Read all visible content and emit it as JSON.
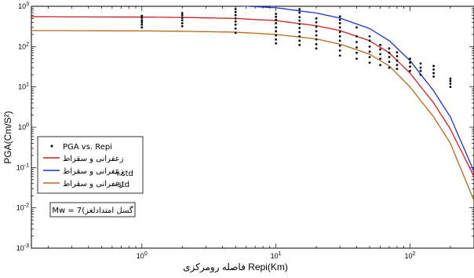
{
  "chart_data": {
    "type": "line",
    "xscale": "log",
    "yscale": "log",
    "xlim": [
      0.15,
      300
    ],
    "ylim": [
      0.001,
      1000
    ],
    "xlabel": "فاصله رومرکزی Repi(Km)",
    "ylabel": "PGA(Cm/S²)",
    "x_ticks": [
      1,
      10,
      100
    ],
    "x_tick_labels": [
      {
        "base": "10",
        "exp": "0"
      },
      {
        "base": "10",
        "exp": "1"
      },
      {
        "base": "10",
        "exp": "2"
      }
    ],
    "y_ticks": [
      0.001,
      0.01,
      0.1,
      1,
      10,
      100,
      1000
    ],
    "y_tick_labels": [
      {
        "base": "10",
        "exp": "-3"
      },
      {
        "base": "10",
        "exp": "-2"
      },
      {
        "base": "10",
        "exp": "-1"
      },
      {
        "base": "10",
        "exp": "0"
      },
      {
        "base": "10",
        "exp": "1"
      },
      {
        "base": "10",
        "exp": "2"
      },
      {
        "base": "10",
        "exp": "3"
      }
    ],
    "series": [
      {
        "name": "PGA vs. Repi",
        "kind": "scatter",
        "color": "#000000",
        "points": [
          [
            1,
            300
          ],
          [
            1,
            350
          ],
          [
            1,
            400
          ],
          [
            1,
            450
          ],
          [
            1,
            520
          ],
          [
            1,
            580
          ],
          [
            2,
            320
          ],
          [
            2,
            380
          ],
          [
            2,
            450
          ],
          [
            2,
            520
          ],
          [
            2,
            600
          ],
          [
            2,
            680
          ],
          [
            5,
            220
          ],
          [
            5,
            280
          ],
          [
            5,
            350
          ],
          [
            5,
            420
          ],
          [
            5,
            500
          ],
          [
            5,
            600
          ],
          [
            5,
            720
          ],
          [
            5,
            850
          ],
          [
            10,
            120
          ],
          [
            10,
            150
          ],
          [
            10,
            190
          ],
          [
            10,
            240
          ],
          [
            10,
            300
          ],
          [
            10,
            380
          ],
          [
            10,
            460
          ],
          [
            10,
            550
          ],
          [
            10,
            650
          ],
          [
            15,
            110
          ],
          [
            15,
            140
          ],
          [
            15,
            180
          ],
          [
            15,
            230
          ],
          [
            15,
            290
          ],
          [
            15,
            360
          ],
          [
            15,
            440
          ],
          [
            15,
            540
          ],
          [
            15,
            700
          ],
          [
            15,
            850
          ],
          [
            20,
            90
          ],
          [
            20,
            115
          ],
          [
            20,
            150
          ],
          [
            20,
            190
          ],
          [
            20,
            240
          ],
          [
            20,
            310
          ],
          [
            20,
            400
          ],
          [
            20,
            500
          ],
          [
            30,
            60
          ],
          [
            30,
            80
          ],
          [
            30,
            105
          ],
          [
            30,
            140
          ],
          [
            30,
            180
          ],
          [
            30,
            230
          ],
          [
            30,
            300
          ],
          [
            30,
            380
          ],
          [
            30,
            460
          ],
          [
            30,
            560
          ],
          [
            40,
            50
          ],
          [
            40,
            70
          ],
          [
            40,
            95
          ],
          [
            40,
            130
          ],
          [
            40,
            180
          ],
          [
            40,
            300
          ],
          [
            50,
            40
          ],
          [
            50,
            55
          ],
          [
            50,
            75
          ],
          [
            50,
            100
          ],
          [
            50,
            140
          ],
          [
            50,
            180
          ],
          [
            60,
            35
          ],
          [
            60,
            50
          ],
          [
            60,
            65
          ],
          [
            60,
            85
          ],
          [
            60,
            110
          ],
          [
            70,
            30
          ],
          [
            70,
            42
          ],
          [
            70,
            55
          ],
          [
            70,
            70
          ],
          [
            70,
            90
          ],
          [
            80,
            28
          ],
          [
            80,
            35
          ],
          [
            80,
            45
          ],
          [
            80,
            58
          ],
          [
            80,
            72
          ],
          [
            100,
            25
          ],
          [
            100,
            32
          ],
          [
            100,
            40
          ],
          [
            100,
            50
          ],
          [
            120,
            20
          ],
          [
            120,
            25
          ],
          [
            120,
            30
          ],
          [
            120,
            38
          ],
          [
            150,
            18
          ],
          [
            150,
            22
          ],
          [
            150,
            27
          ],
          [
            150,
            33
          ],
          [
            200,
            10
          ],
          [
            200,
            12
          ],
          [
            200,
            14
          ],
          [
            200,
            16
          ]
        ]
      },
      {
        "name": "زعفرانی و سقراط",
        "kind": "line",
        "color": "#cc1f1f",
        "x": [
          0.15,
          1,
          2,
          5,
          10,
          20,
          30,
          50,
          70,
          100,
          150,
          200,
          300
        ],
        "y": [
          550,
          540,
          530,
          500,
          440,
          330,
          250,
          140,
          70,
          22,
          4,
          0.9,
          0.06
        ]
      },
      {
        "name": "زعفرانی و سقراط",
        "suffix": "+std",
        "kind": "line",
        "color": "#1f2fcc",
        "x": [
          0.15,
          1,
          2,
          5,
          10,
          20,
          30,
          50,
          70,
          100,
          150,
          200,
          300
        ],
        "y": [
          1150,
          1130,
          1100,
          1040,
          920,
          680,
          510,
          280,
          140,
          45,
          8,
          1.8,
          0.08
        ]
      },
      {
        "name": "زعفرانی و سقراط",
        "suffix": "-std",
        "kind": "line",
        "color": "#b8671a",
        "x": [
          0.15,
          1,
          2,
          5,
          10,
          20,
          30,
          50,
          70,
          100,
          150,
          200,
          300
        ],
        "y": [
          250,
          245,
          240,
          228,
          200,
          155,
          115,
          65,
          33,
          10,
          1.8,
          0.4,
          0.015
        ]
      }
    ],
    "legend_position": "lower-left",
    "annotation": "Mw = 7(گسل امتدادلغز"
  }
}
